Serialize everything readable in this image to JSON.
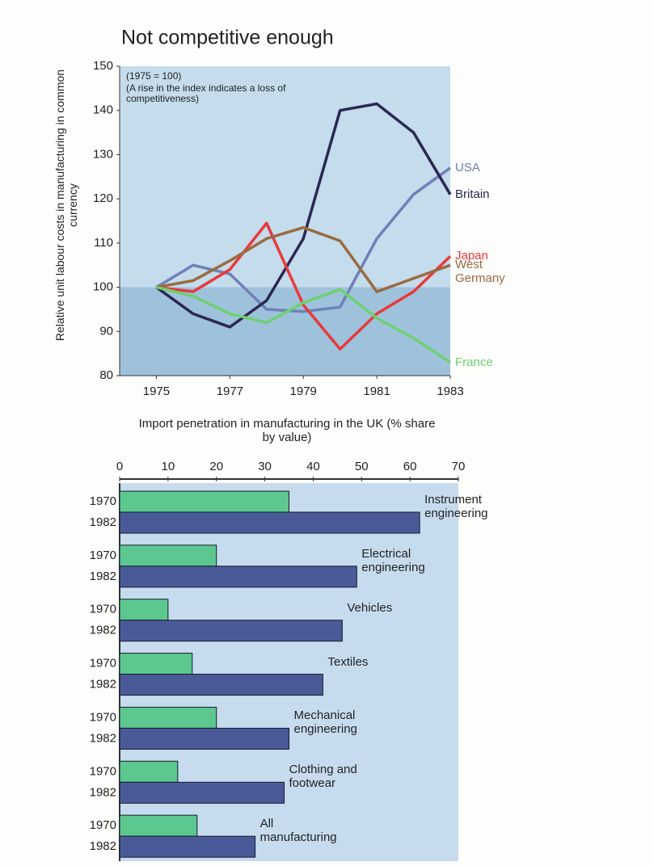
{
  "chart_data": [
    {
      "type": "line",
      "title": "Not competitive enough",
      "annotations": [
        "(1975 = 100)",
        "(A rise in the index indicates a loss of competitiveness)"
      ],
      "y_label": "Relative unit labour costs in manufacturing in common currency",
      "x": [
        1975,
        1976,
        1977,
        1978,
        1979,
        1980,
        1981,
        1982,
        1983
      ],
      "xlim": [
        1974,
        1983
      ],
      "xticks": [
        1975,
        1977,
        1979,
        1981,
        1983
      ],
      "ylim": [
        80,
        150
      ],
      "yticks": [
        80,
        90,
        100,
        110,
        120,
        130,
        140,
        150
      ],
      "series": [
        {
          "name": "USA",
          "color": "#6f80b8",
          "values": [
            100,
            105,
            103,
            95,
            94.5,
            95.5,
            111,
            121,
            127
          ]
        },
        {
          "name": "Britain",
          "color": "#2b2852",
          "values": [
            100,
            94,
            91,
            97,
            111,
            140,
            141.5,
            135,
            121
          ]
        },
        {
          "name": "Japan",
          "color": "#e8393a",
          "values": [
            100,
            99,
            104,
            114.5,
            96,
            86,
            94,
            99,
            107
          ]
        },
        {
          "name": "West Germany",
          "color": "#9a6a40",
          "values": [
            100,
            101.5,
            106,
            111,
            113.5,
            110.5,
            99,
            102,
            105
          ]
        },
        {
          "name": "France",
          "color": "#6fd06f",
          "values": [
            100,
            98,
            94,
            92,
            96.5,
            99.5,
            93,
            88.5,
            83
          ]
        }
      ]
    },
    {
      "type": "bar",
      "orientation": "horizontal",
      "title": "Import penetration in manufacturing in the UK (% share by value)",
      "categories": [
        "Instrument engineering",
        "Electrical engineering",
        "Vehicles",
        "Textiles",
        "Mechanical engineering",
        "Clothing and footwear",
        "All manufacturing"
      ],
      "xlim": [
        0,
        70
      ],
      "xticks": [
        0,
        10,
        20,
        30,
        40,
        50,
        60,
        70
      ],
      "series": [
        {
          "name": "1970",
          "color": "#5cc890",
          "values": [
            35,
            20,
            10,
            15,
            20,
            12,
            16
          ]
        },
        {
          "name": "1982",
          "color": "#4a5a98",
          "values": [
            62,
            49,
            46,
            42,
            35,
            34,
            28
          ]
        }
      ]
    }
  ]
}
